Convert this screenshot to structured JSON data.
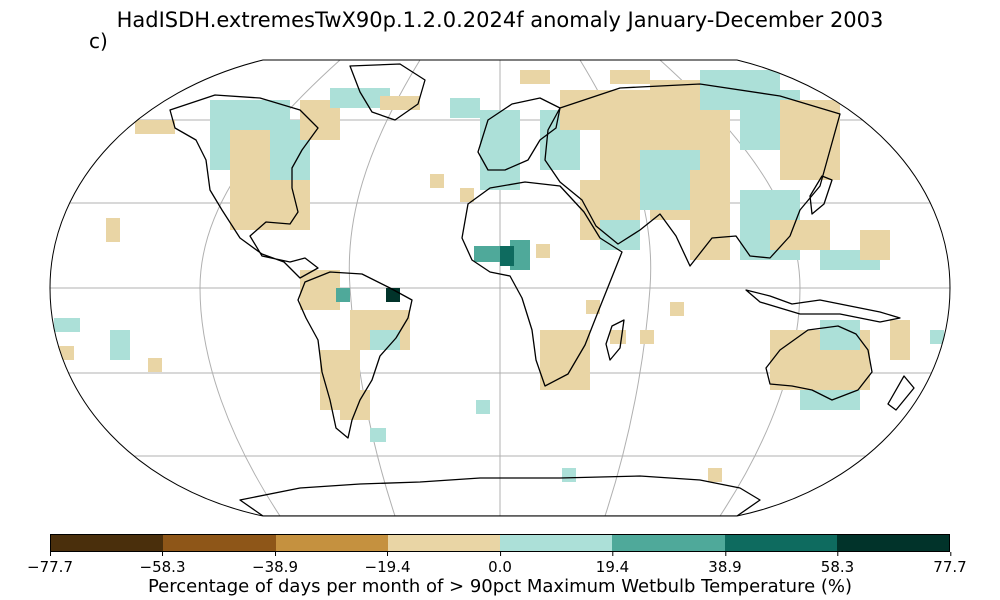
{
  "title": "HadISDH.extremesTwX90p.1.2.0.2024f anomaly January-December 2003",
  "panel_label": "c)",
  "projection": "Robinson",
  "colorbar": {
    "label": "Percentage of days per month of > 90pct Maximum Wetbulb Temperature (%)",
    "ticks": [
      "−77.7",
      "−58.3",
      "−38.9",
      "−19.4",
      "0.0",
      "19.4",
      "38.9",
      "58.3",
      "77.7"
    ],
    "colors": [
      "#4a2f0c",
      "#8e5618",
      "#c5913f",
      "#e9d5a5",
      "#ace0d8",
      "#4fa99a",
      "#0e6b5f",
      "#01332a"
    ]
  },
  "colors": {
    "land_outline": "#000000",
    "grid": "#b0b0b0",
    "ocean": "#ffffff"
  }
}
